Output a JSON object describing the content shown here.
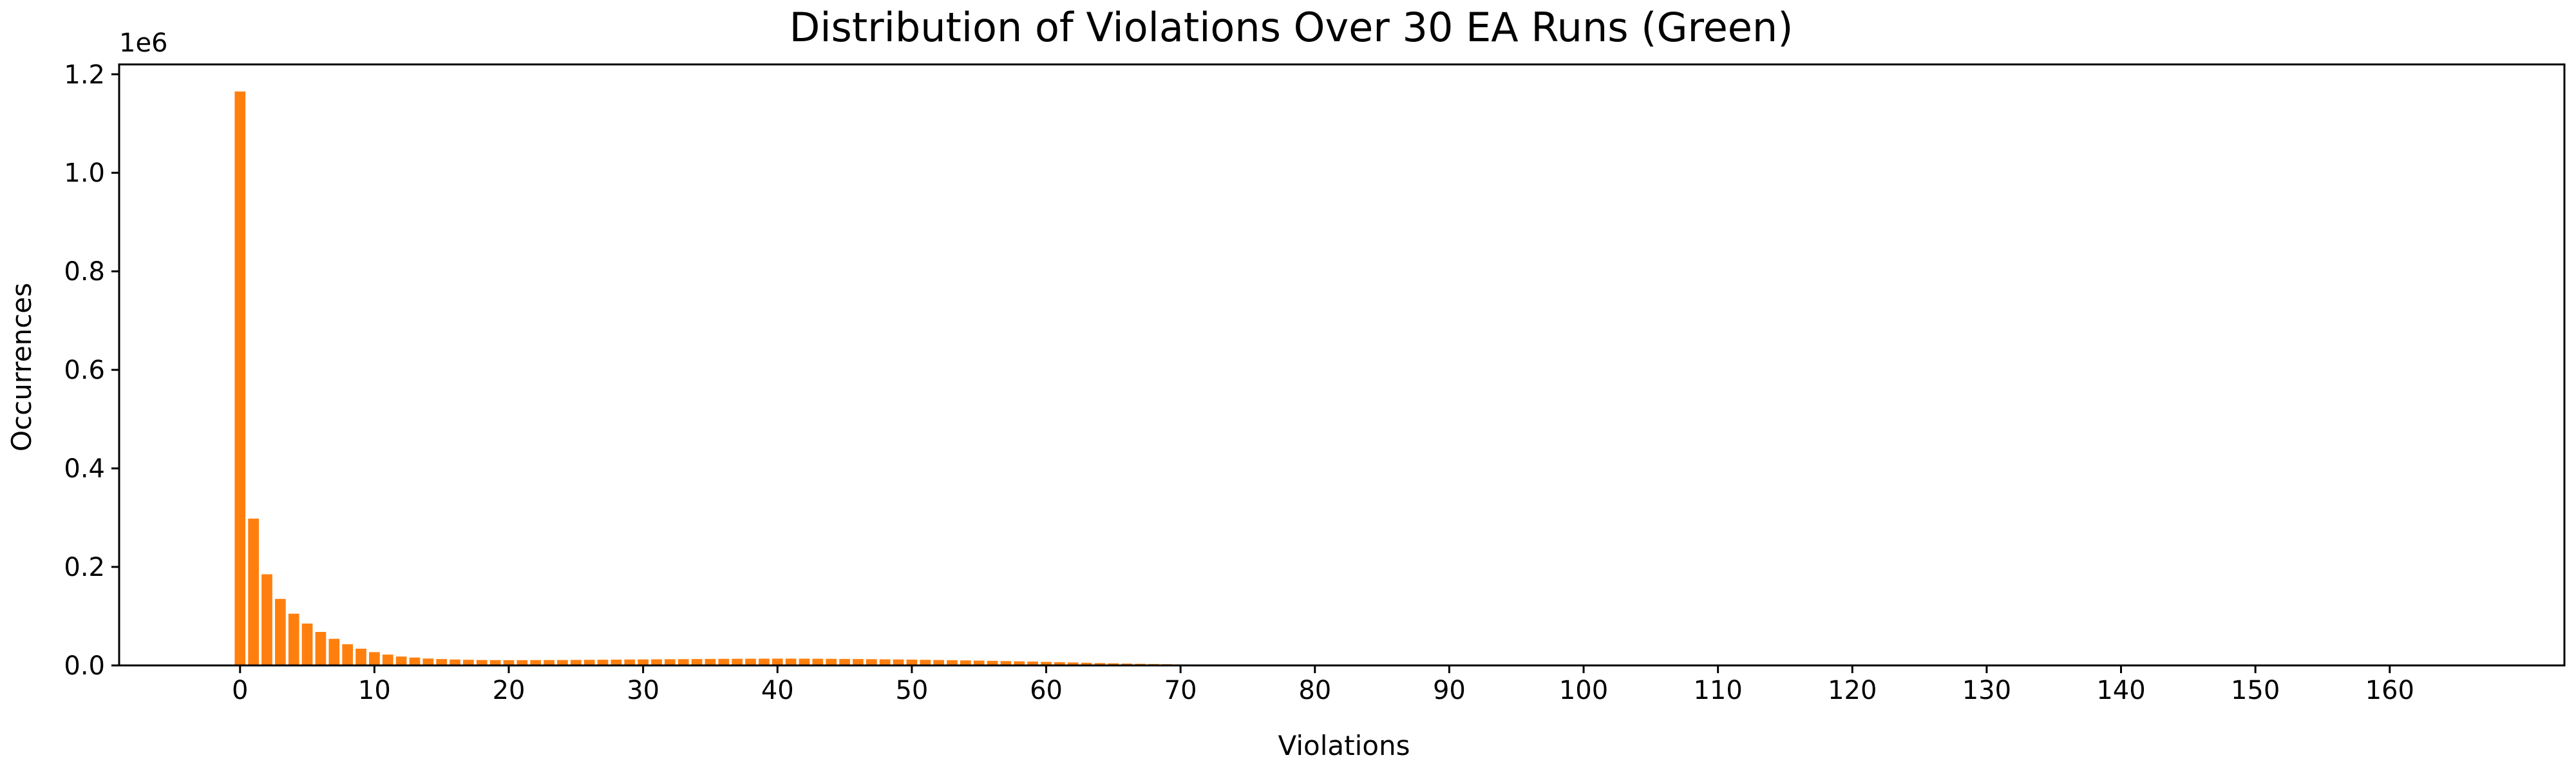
{
  "chart_data": {
    "type": "bar",
    "title": "Distribution of Violations Over 30 EA Runs (Green)",
    "xlabel": "Violations",
    "ylabel": "Occurrences",
    "y_scale_multiplier": "1e6",
    "bar_color": "#ff7f0e",
    "xlim": [
      -9,
      173
    ],
    "ylim": [
      0,
      1.22
    ],
    "x_ticks": [
      0,
      10,
      20,
      30,
      40,
      50,
      60,
      70,
      80,
      90,
      100,
      110,
      120,
      130,
      140,
      150,
      160
    ],
    "x_tick_labels": [
      "0",
      "10",
      "20",
      "30",
      "40",
      "50",
      "60",
      "70",
      "80",
      "90",
      "100",
      "110",
      "120",
      "130",
      "140",
      "150",
      "160"
    ],
    "y_ticks": [
      0,
      0.2,
      0.4,
      0.6,
      0.8,
      1.0,
      1.2
    ],
    "y_tick_labels": [
      "0.0",
      "0.2",
      "0.4",
      "0.6",
      "0.8",
      "1.0",
      "1.2"
    ],
    "grid": false,
    "x": [
      0,
      1,
      2,
      3,
      4,
      5,
      6,
      7,
      8,
      9,
      10,
      11,
      12,
      13,
      14,
      15,
      16,
      17,
      18,
      19,
      20,
      21,
      22,
      23,
      24,
      25,
      26,
      27,
      28,
      29,
      30,
      31,
      32,
      33,
      34,
      35,
      36,
      37,
      38,
      39,
      40,
      41,
      42,
      43,
      44,
      45,
      46,
      47,
      48,
      49,
      50,
      51,
      52,
      53,
      54,
      55,
      56,
      57,
      58,
      59,
      60,
      61,
      62,
      63,
      64,
      65,
      66,
      67,
      68,
      69,
      70,
      71,
      72,
      73,
      74,
      75,
      76,
      77,
      78,
      79,
      80,
      81,
      82,
      83,
      84,
      85,
      86,
      87,
      88,
      89,
      90
    ],
    "values": [
      1.165,
      0.298,
      0.185,
      0.135,
      0.105,
      0.085,
      0.068,
      0.054,
      0.043,
      0.034,
      0.027,
      0.022,
      0.018,
      0.016,
      0.014,
      0.013,
      0.012,
      0.0115,
      0.011,
      0.0108,
      0.0107,
      0.0107,
      0.0108,
      0.0109,
      0.011,
      0.0112,
      0.0114,
      0.0116,
      0.0118,
      0.012,
      0.0122,
      0.0124,
      0.0126,
      0.0128,
      0.013,
      0.0132,
      0.0134,
      0.0135,
      0.0136,
      0.0137,
      0.0138,
      0.0138,
      0.0137,
      0.0136,
      0.0134,
      0.0132,
      0.013,
      0.0127,
      0.0124,
      0.0121,
      0.0118,
      0.0114,
      0.011,
      0.0106,
      0.0102,
      0.0098,
      0.0093,
      0.0088,
      0.0083,
      0.0078,
      0.0072,
      0.0066,
      0.006,
      0.0054,
      0.0048,
      0.0043,
      0.0038,
      0.0033,
      0.0029,
      0.0025,
      0.0021,
      0.0018,
      0.0015,
      0.0012,
      0.001,
      0.0008,
      0.0006,
      0.0005,
      0.0004,
      0.0003,
      0.0002,
      0.00015,
      0.0001,
      0.0001,
      8e-05,
      6e-05,
      5e-05,
      4e-05,
      3e-05,
      2e-05,
      1e-05
    ]
  }
}
